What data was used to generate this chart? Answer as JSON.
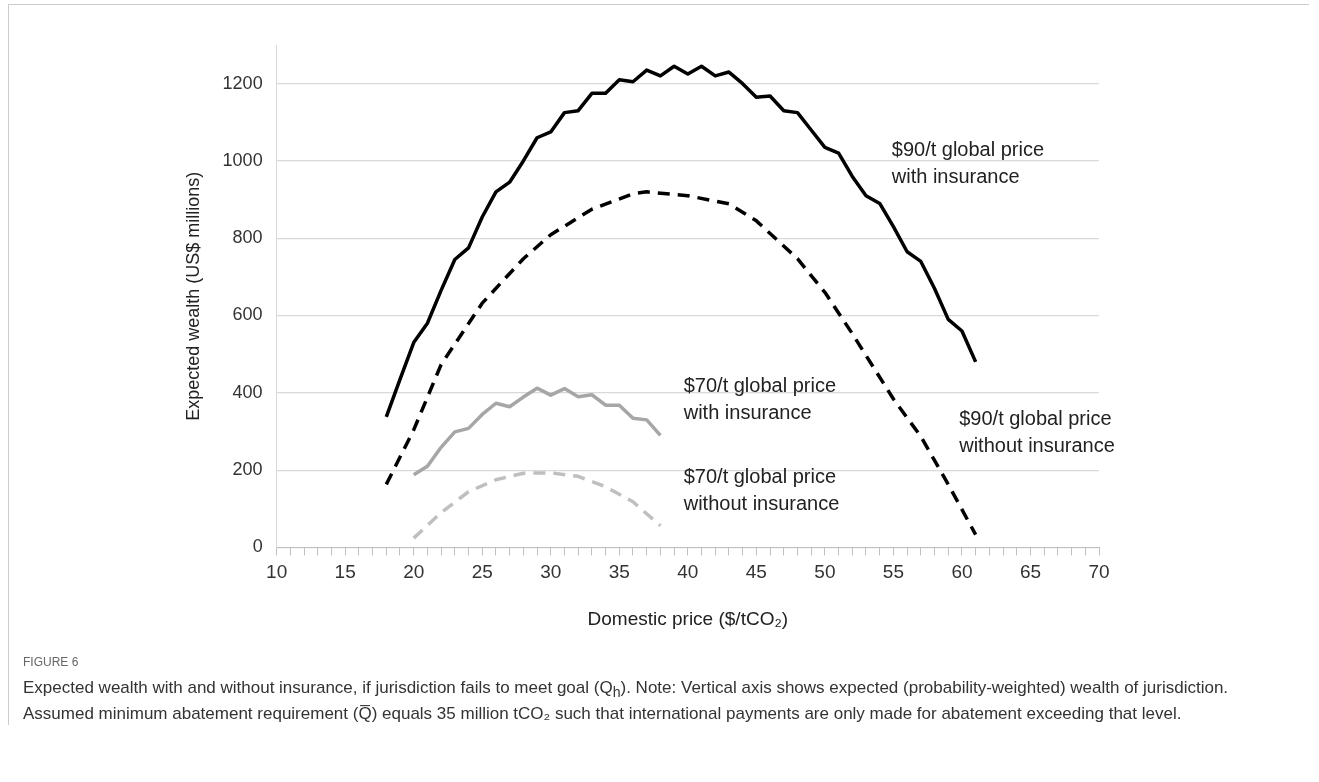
{
  "chart_data": {
    "type": "line",
    "xlabel": "Domestic price ($/tCO₂)",
    "ylabel": "Expected wealth (US$ millions)",
    "xlim": [
      10,
      70
    ],
    "ylim": [
      0,
      1300
    ],
    "xticks": [
      10,
      {
        "value": 11,
        "label": null
      },
      {
        "value": 12,
        "label": null
      },
      {
        "value": 13,
        "label": null
      },
      {
        "value": 14,
        "label": null
      },
      15,
      {
        "value": 16,
        "label": null
      },
      {
        "value": 17,
        "label": null
      },
      {
        "value": 18,
        "label": null
      },
      {
        "value": 19,
        "label": null
      },
      20,
      {
        "value": 21,
        "label": null
      },
      {
        "value": 22,
        "label": null
      },
      {
        "value": 23,
        "label": null
      },
      {
        "value": 24,
        "label": null
      },
      25,
      {
        "value": 26,
        "label": null
      },
      {
        "value": 27,
        "label": null
      },
      {
        "value": 28,
        "label": null
      },
      {
        "value": 29,
        "label": null
      },
      30,
      {
        "value": 31,
        "label": null
      },
      {
        "value": 32,
        "label": null
      },
      {
        "value": 33,
        "label": null
      },
      {
        "value": 34,
        "label": null
      },
      35,
      {
        "value": 36,
        "label": null
      },
      {
        "value": 37,
        "label": null
      },
      {
        "value": 38,
        "label": null
      },
      {
        "value": 39,
        "label": null
      },
      40,
      {
        "value": 41,
        "label": null
      },
      {
        "value": 42,
        "label": null
      },
      {
        "value": 43,
        "label": null
      },
      {
        "value": 44,
        "label": null
      },
      45,
      {
        "value": 46,
        "label": null
      },
      {
        "value": 47,
        "label": null
      },
      {
        "value": 48,
        "label": null
      },
      {
        "value": 49,
        "label": null
      },
      50,
      {
        "value": 51,
        "label": null
      },
      {
        "value": 52,
        "label": null
      },
      {
        "value": 53,
        "label": null
      },
      {
        "value": 54,
        "label": null
      },
      55,
      {
        "value": 56,
        "label": null
      },
      {
        "value": 57,
        "label": null
      },
      {
        "value": 58,
        "label": null
      },
      {
        "value": 59,
        "label": null
      },
      60,
      {
        "value": 61,
        "label": null
      },
      {
        "value": 62,
        "label": null
      },
      {
        "value": 63,
        "label": null
      },
      {
        "value": 64,
        "label": null
      },
      65,
      {
        "value": 66,
        "label": null
      },
      {
        "value": 67,
        "label": null
      },
      {
        "value": 68,
        "label": null
      },
      {
        "value": 69,
        "label": null
      },
      70
    ],
    "yticks": [
      0,
      200,
      400,
      600,
      800,
      1000,
      1200
    ],
    "grid": "y",
    "legend": false,
    "marker": "none",
    "series": [
      {
        "color": "#000000",
        "line_style": "solid",
        "x": [
          18,
          19,
          20,
          21,
          22,
          23,
          24,
          25,
          26,
          27,
          28,
          29,
          30,
          31,
          32,
          33,
          34,
          35,
          36,
          37,
          38,
          39,
          40,
          41,
          42,
          43,
          44,
          45,
          46,
          47,
          48,
          49,
          50,
          51,
          52,
          53,
          54,
          55,
          56,
          57,
          58,
          59,
          60,
          61
        ],
        "values": [
          338,
          435,
          530,
          580,
          665,
          745,
          775,
          855,
          920,
          945,
          1000,
          1060,
          1075,
          1125,
          1130,
          1175,
          1175,
          1210,
          1205,
          1235,
          1220,
          1245,
          1225,
          1245,
          1220,
          1230,
          1200,
          1165,
          1168,
          1130,
          1125,
          1080,
          1035,
          1020,
          960,
          910,
          890,
          830,
          765,
          740,
          670,
          590,
          560,
          480
        ]
      },
      {
        "color": "#000000",
        "line_style": "dashed",
        "x": [
          18,
          20,
          22,
          25,
          28,
          30,
          33,
          36,
          37,
          40,
          43,
          45,
          48,
          50,
          52,
          55,
          57,
          59,
          61
        ],
        "values": [
          163,
          304,
          473,
          632,
          747,
          809,
          875,
          915,
          920,
          910,
          889,
          845,
          747,
          660,
          553,
          384,
          287,
          163,
          33
        ]
      },
      {
        "color": "#a6a6a6",
        "line_style": "solid",
        "x": [
          20,
          21,
          22,
          23,
          24,
          25,
          26,
          27,
          28,
          29,
          30,
          31,
          32,
          33,
          34,
          35,
          36,
          37,
          38
        ],
        "values": [
          188,
          210,
          259,
          299,
          308,
          344,
          373,
          364,
          389,
          412,
          394,
          411,
          390,
          395,
          368,
          368,
          334,
          330,
          290
        ]
      },
      {
        "color": "#bfbfbf",
        "line_style": "dashed",
        "x": [
          20,
          22,
          24,
          26,
          28,
          30,
          32,
          34,
          36,
          38
        ],
        "values": [
          24,
          90,
          144,
          175,
          192,
          193,
          184,
          157,
          118,
          56
        ]
      }
    ],
    "annotations": [
      "$90/t global price\nwith insurance",
      "$70/t global price\nwith insurance",
      "$70/t global price\nwithout insurance",
      "$90/t global price\nwithout insurance",
      "FIGURE 6",
      "Expected wealth with and without insurance, if jurisdiction fails to meet goal (Q$_{h}$). Note: Vertical axis shows expected (probability-weighted) wealth of jurisdiction. Assumed minimum abatement requirement (Q̅) equals 35 million tCO₂ such that international payments are only made for abatement exceeding that level."
    ]
  }
}
